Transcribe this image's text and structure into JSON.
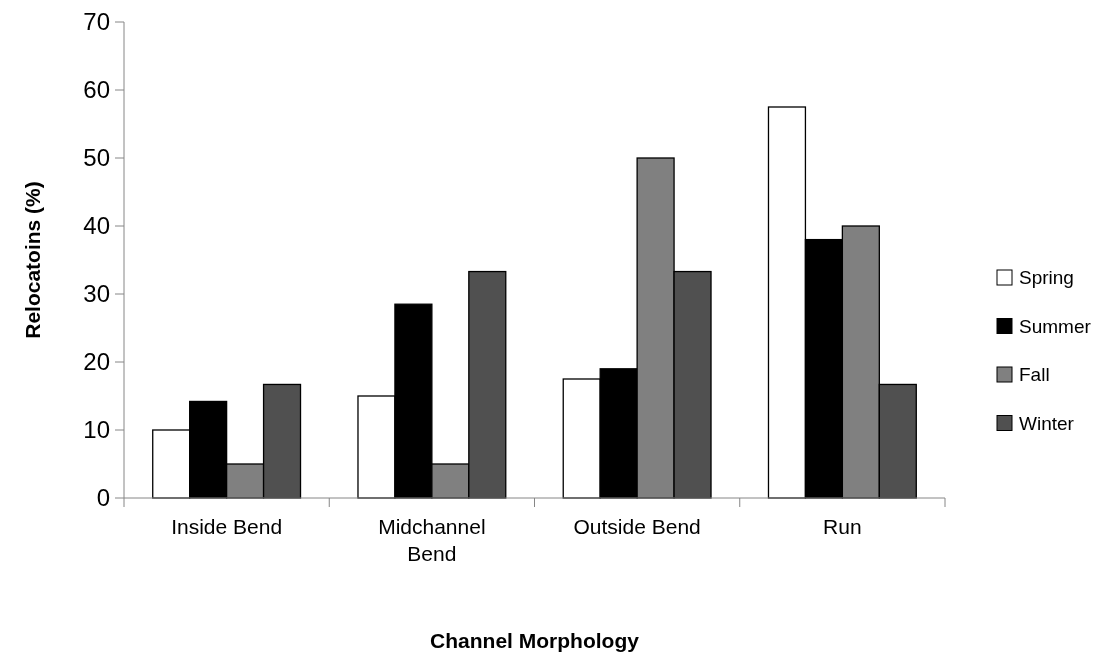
{
  "chart_data": {
    "type": "bar",
    "xlabel": "Channel Morphology",
    "ylabel": "Relocatoins (%)",
    "categories": [
      "Inside Bend",
      "Midchannel Bend",
      "Outside Bend",
      "Run"
    ],
    "series": [
      {
        "name": "Spring",
        "color": "#ffffff",
        "values": [
          10,
          15,
          17.5,
          57.5
        ]
      },
      {
        "name": "Summer",
        "color": "#000000",
        "values": [
          14.2,
          28.5,
          19,
          38
        ]
      },
      {
        "name": "Fall",
        "color": "#808080",
        "values": [
          5,
          5,
          50,
          40
        ]
      },
      {
        "name": "Winter",
        "color": "#505050",
        "values": [
          16.7,
          33.3,
          33.3,
          16.7
        ]
      }
    ],
    "ylim": [
      0,
      70
    ],
    "yticks": [
      0,
      10,
      20,
      30,
      40,
      50,
      60,
      70
    ],
    "grid": false,
    "legend": "right"
  }
}
